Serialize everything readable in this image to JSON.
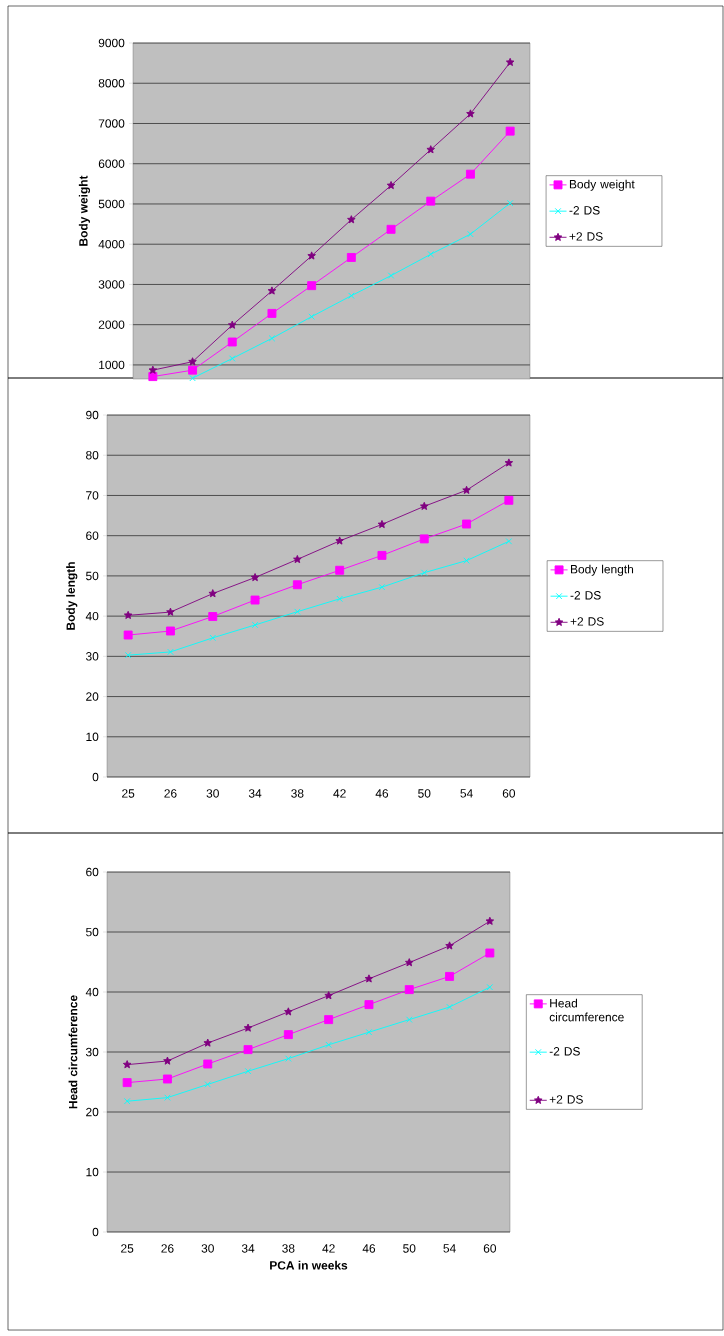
{
  "chart_data": [
    {
      "type": "line",
      "ylabel": "Body weight",
      "categories": [
        null,
        null,
        null,
        null,
        null,
        null,
        null,
        null,
        null,
        null
      ],
      "ylim": [
        650,
        9000
      ],
      "yticks": [
        1000,
        2000,
        3000,
        4000,
        5000,
        6000,
        7000,
        8000,
        9000
      ],
      "grid": "y",
      "legend": "right",
      "tick_labels": "y",
      "series": [
        {
          "name": "Body weight",
          "color": "#ff00ff",
          "marker": "square",
          "values": [
            710,
            870,
            1570,
            2280,
            2970,
            3670,
            4370,
            5070,
            5740,
            6810
          ]
        },
        {
          "name": "-2 DS",
          "color": "#00ffff",
          "marker": "cross",
          "values": [
            null,
            670,
            1160,
            1660,
            2200,
            2720,
            3220,
            3750,
            4250,
            5020
          ]
        },
        {
          "name": "+2 DS",
          "color": "#800080",
          "marker": "star",
          "values": [
            870,
            1080,
            1990,
            2840,
            3710,
            4610,
            5460,
            6350,
            7240,
            8520
          ]
        }
      ]
    },
    {
      "type": "line",
      "ylabel": "Body length",
      "categories": [
        "25",
        "26",
        "30",
        "34",
        "38",
        "42",
        "46",
        "50",
        "54",
        "60"
      ],
      "ylim": [
        0,
        90
      ],
      "yticks": [
        0,
        10,
        20,
        30,
        40,
        50,
        60,
        70,
        80,
        90
      ],
      "grid": "y",
      "legend": "right",
      "series": [
        {
          "name": "Body length",
          "color": "#ff00ff",
          "marker": "square",
          "values": [
            35.3,
            36.3,
            39.9,
            44.0,
            47.8,
            51.4,
            55.1,
            59.2,
            62.9,
            68.8
          ]
        },
        {
          "name": "-2 DS",
          "color": "#00ffff",
          "marker": "cross",
          "values": [
            30.3,
            31.1,
            34.6,
            37.8,
            41.1,
            44.3,
            47.2,
            50.8,
            53.8,
            58.6
          ]
        },
        {
          "name": "+2 DS",
          "color": "#800080",
          "marker": "star",
          "values": [
            40.2,
            41.0,
            45.6,
            49.6,
            54.1,
            58.7,
            62.8,
            67.3,
            71.3,
            78.1
          ]
        }
      ]
    },
    {
      "type": "line",
      "ylabel": "Head circumference",
      "xlabel": "PCA in weeks",
      "categories": [
        "25",
        "26",
        "30",
        "34",
        "38",
        "42",
        "46",
        "50",
        "54",
        "60"
      ],
      "ylim": [
        0,
        60
      ],
      "yticks": [
        0,
        10,
        20,
        30,
        40,
        50,
        60
      ],
      "grid": "y",
      "legend": "right",
      "series": [
        {
          "name": "Head circumference",
          "color": "#ff00ff",
          "marker": "square",
          "values": [
            24.9,
            25.5,
            28.0,
            30.4,
            32.9,
            35.4,
            37.9,
            40.4,
            42.6,
            46.5
          ]
        },
        {
          "name": "-2 DS",
          "color": "#00ffff",
          "marker": "cross",
          "values": [
            21.8,
            22.4,
            24.6,
            26.8,
            28.9,
            31.2,
            33.3,
            35.4,
            37.5,
            40.8
          ]
        },
        {
          "name": "+2 DS",
          "color": "#800080",
          "marker": "star",
          "values": [
            27.9,
            28.5,
            31.5,
            34.0,
            36.7,
            39.4,
            42.2,
            44.9,
            47.7,
            51.8
          ]
        }
      ]
    }
  ]
}
